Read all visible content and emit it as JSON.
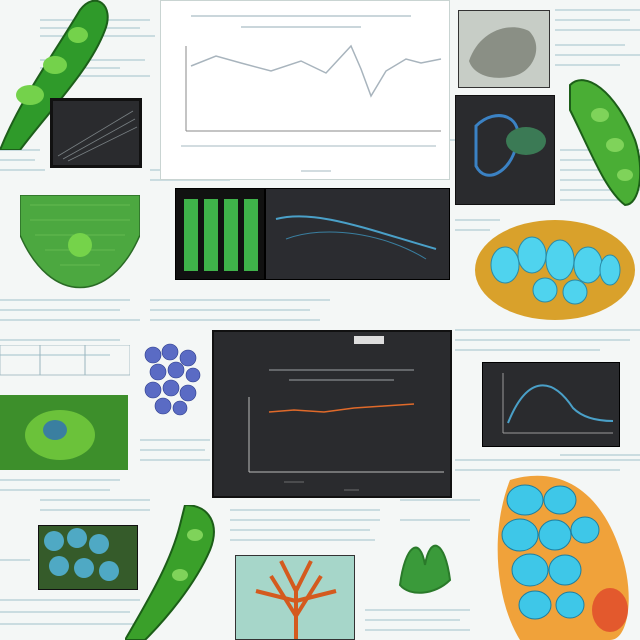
{
  "collage": {
    "description_style": "scientific-collage",
    "colors": {
      "background": "#f4f7f6",
      "accent_green": "#3fae2e",
      "accent_cyan": "#4fd3ee",
      "dark_panel": "#2a2b2e",
      "chart_line": "#a8b4bd",
      "orange_line": "#e06a2a",
      "blue_line": "#4aa0c8"
    },
    "icons": [
      "leaf-organism-icon",
      "cell-cluster-icon",
      "molecule-cluster-icon",
      "coral-icon",
      "tissue-icon"
    ]
  }
}
